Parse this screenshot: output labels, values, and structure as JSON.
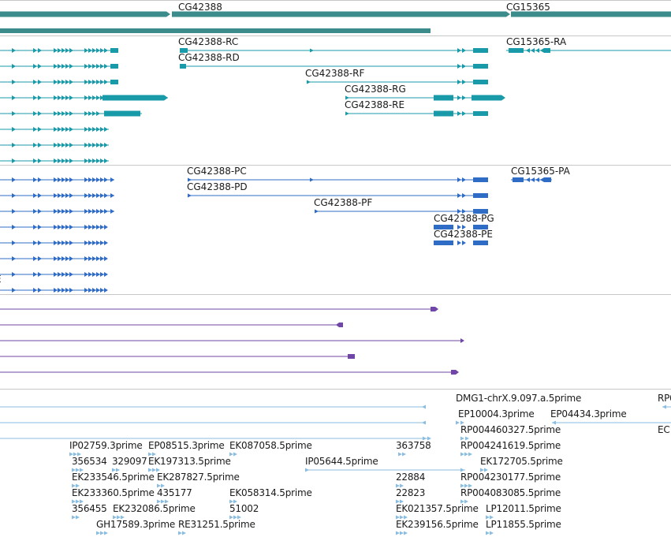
{
  "colors": {
    "gene": "#3c8c8c",
    "transcript": "#189aa8",
    "protein": "#2f6cc6",
    "ncrna": "#7046a6",
    "est": "#8abde0",
    "divider": "#c8c8c8",
    "text": "#1a1a1a"
  },
  "tracks": {
    "gene": {
      "labels": [
        "CG42388",
        "CG15365"
      ]
    },
    "transcripts": {
      "labels": [
        "CG42388-RC",
        "CG42388-RD",
        "CG42388-RF",
        "CG42388-RG",
        "CG42388-RE",
        "CG15365-RA"
      ]
    },
    "proteins": {
      "labels": [
        "CG42388-PC",
        "CG42388-PD",
        "CG42388-PF",
        "CG42388-PG",
        "CG42388-PE",
        "CG15365-PA"
      ],
      "edge_text": "E"
    },
    "ests": {
      "labels": [
        "DMG1-chrX.9.097.a.5prime",
        "RP0",
        "EP10004.3prime",
        "EP04434.3prime",
        "RP004460327.5prime",
        "EC",
        "IP02759.3prime",
        "EP08515.3prime",
        "EK087058.5prime",
        "363758",
        "RP004241619.5prime",
        "356534",
        "329097",
        "EK197313.5prime",
        "IP05644.5prime",
        "EK172705.5prime",
        "EK233546.5prime",
        "EK287827.5prime",
        "22884",
        "RP004230177.5prime",
        "EK233360.5prime",
        "435177",
        "EK058314.5prime",
        "22823",
        "RP004083085.5prime",
        "356455",
        "EK232086.5prime",
        "51002",
        "EK021357.5prime",
        "LP12011.5prime",
        "GH17589.3prime",
        "RE31251.5prime",
        "EK239156.5prime",
        "LP11855.5prime"
      ]
    }
  }
}
